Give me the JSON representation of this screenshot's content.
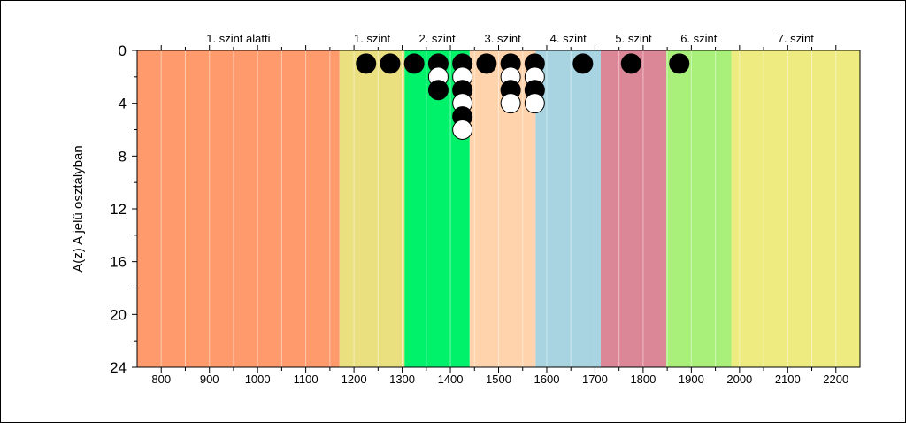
{
  "chart_data": {
    "type": "scatter",
    "title": "",
    "xlabel": "",
    "ylabel": "A(z) A jelű osztályban",
    "xlim": [
      750,
      2250
    ],
    "ylim": [
      24,
      0
    ],
    "x_ticks": [
      800,
      900,
      1000,
      1100,
      1200,
      1300,
      1400,
      1500,
      1600,
      1700,
      1800,
      1900,
      2000,
      2100,
      2200
    ],
    "y_ticks": [
      0,
      4,
      8,
      12,
      16,
      20,
      24
    ],
    "grid": "vertical",
    "bands": [
      {
        "label": "1. szint alatti",
        "from": 750,
        "to": 1170,
        "color": "#FF9A6C"
      },
      {
        "label": "1. szint",
        "from": 1170,
        "to": 1305,
        "color": "#EBE080"
      },
      {
        "label": "2. szint",
        "from": 1305,
        "to": 1440,
        "color": "#00F26B"
      },
      {
        "label": "3. szint",
        "from": 1440,
        "to": 1577,
        "color": "#FFD3AC"
      },
      {
        "label": "4. szint",
        "from": 1577,
        "to": 1712,
        "color": "#A8D4E2"
      },
      {
        "label": "5. szint",
        "from": 1712,
        "to": 1848,
        "color": "#DB8797"
      },
      {
        "label": "6. szint",
        "from": 1848,
        "to": 1983,
        "color": "#A8F07A"
      },
      {
        "label": "7. szint",
        "from": 1983,
        "to": 2250,
        "color": "#EEEB80"
      }
    ],
    "points": [
      {
        "x": 1225,
        "y": 1,
        "fill": "black"
      },
      {
        "x": 1275,
        "y": 1,
        "fill": "black"
      },
      {
        "x": 1325,
        "y": 1,
        "fill": "black"
      },
      {
        "x": 1375,
        "y": 1,
        "fill": "black"
      },
      {
        "x": 1375,
        "y": 2,
        "fill": "white"
      },
      {
        "x": 1375,
        "y": 3,
        "fill": "black"
      },
      {
        "x": 1425,
        "y": 1,
        "fill": "black"
      },
      {
        "x": 1425,
        "y": 2,
        "fill": "white"
      },
      {
        "x": 1425,
        "y": 3,
        "fill": "black"
      },
      {
        "x": 1425,
        "y": 4,
        "fill": "white"
      },
      {
        "x": 1425,
        "y": 5,
        "fill": "black"
      },
      {
        "x": 1425,
        "y": 6,
        "fill": "white"
      },
      {
        "x": 1475,
        "y": 1,
        "fill": "black"
      },
      {
        "x": 1525,
        "y": 1,
        "fill": "black"
      },
      {
        "x": 1525,
        "y": 2,
        "fill": "white"
      },
      {
        "x": 1525,
        "y": 3,
        "fill": "black"
      },
      {
        "x": 1525,
        "y": 4,
        "fill": "white"
      },
      {
        "x": 1575,
        "y": 1,
        "fill": "black"
      },
      {
        "x": 1575,
        "y": 2,
        "fill": "white"
      },
      {
        "x": 1575,
        "y": 3,
        "fill": "black"
      },
      {
        "x": 1575,
        "y": 4,
        "fill": "white"
      },
      {
        "x": 1675,
        "y": 1,
        "fill": "black"
      },
      {
        "x": 1775,
        "y": 1,
        "fill": "black"
      },
      {
        "x": 1875,
        "y": 1,
        "fill": "black"
      }
    ]
  }
}
